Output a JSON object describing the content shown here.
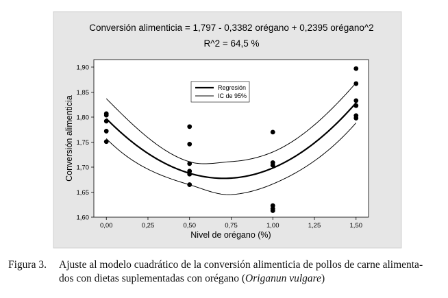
{
  "chart_data": {
    "type": "scatter",
    "title": "Conversión alimenticia = 1,797 - 0,3382 orégano + 0,2395 orégano^2",
    "subtitle": "R^2 = 64,5 %",
    "xlabel": "Nivel de orégano (%)",
    "ylabel": "Conversión alimenticia",
    "xlim": [
      -0.075,
      1.575
    ],
    "ylim": [
      1.6,
      1.915
    ],
    "x_ticks": [
      0.0,
      0.25,
      0.5,
      0.75,
      1.0,
      1.25,
      1.5
    ],
    "x_tick_labels": [
      "0,00",
      "0,25",
      "0,50",
      "0,75",
      "1,00",
      "1,25",
      "1,50"
    ],
    "y_ticks": [
      1.6,
      1.65,
      1.7,
      1.75,
      1.8,
      1.85,
      1.9
    ],
    "y_tick_labels": [
      "1,60",
      "1,65",
      "1,70",
      "1,75",
      "1,80",
      "1,85",
      "1,90"
    ],
    "grid": false,
    "legend_placement": "top-center",
    "regression": {
      "intercept": 1.797,
      "b1": -0.3382,
      "b2": 0.2395
    },
    "ci_half_width": [
      {
        "x": 0.0,
        "w": 0.04
      },
      {
        "x": 0.5,
        "w": 0.023
      },
      {
        "x": 0.75,
        "w": 0.033
      },
      {
        "x": 1.0,
        "w": 0.032
      },
      {
        "x": 1.5,
        "w": 0.04
      }
    ],
    "series": [
      {
        "name": "Regresión",
        "kind": "fit"
      },
      {
        "name": "IC de 95%",
        "kind": "ci"
      }
    ],
    "points": [
      {
        "x": 0.0,
        "y": 1.807
      },
      {
        "x": 0.0,
        "y": 1.804
      },
      {
        "x": 0.0,
        "y": 1.792
      },
      {
        "x": 0.0,
        "y": 1.772
      },
      {
        "x": 0.0,
        "y": 1.751
      },
      {
        "x": 0.5,
        "y": 1.781
      },
      {
        "x": 0.5,
        "y": 1.746
      },
      {
        "x": 0.5,
        "y": 1.707
      },
      {
        "x": 0.5,
        "y": 1.692
      },
      {
        "x": 0.5,
        "y": 1.686
      },
      {
        "x": 0.5,
        "y": 1.665
      },
      {
        "x": 1.0,
        "y": 1.77
      },
      {
        "x": 1.0,
        "y": 1.709
      },
      {
        "x": 1.0,
        "y": 1.704
      },
      {
        "x": 1.0,
        "y": 1.623
      },
      {
        "x": 1.0,
        "y": 1.617
      },
      {
        "x": 1.0,
        "y": 1.613
      },
      {
        "x": 1.5,
        "y": 1.897
      },
      {
        "x": 1.5,
        "y": 1.867
      },
      {
        "x": 1.5,
        "y": 1.833
      },
      {
        "x": 1.5,
        "y": 1.823
      },
      {
        "x": 1.5,
        "y": 1.803
      },
      {
        "x": 1.5,
        "y": 1.798
      }
    ],
    "colors": {
      "panel_bg": "#e6e6e6",
      "plot_bg": "#ffffff",
      "ink": "#000000"
    }
  },
  "caption": {
    "label": "Figura 3.",
    "text_line1": "Ajuste al modelo cuadrático de la conversión alimenticia de pollos de carne alimenta-",
    "text_line2": "dos con dietas suplementadas con orégano (",
    "species": "Origanun vulgare",
    "close": ")"
  }
}
